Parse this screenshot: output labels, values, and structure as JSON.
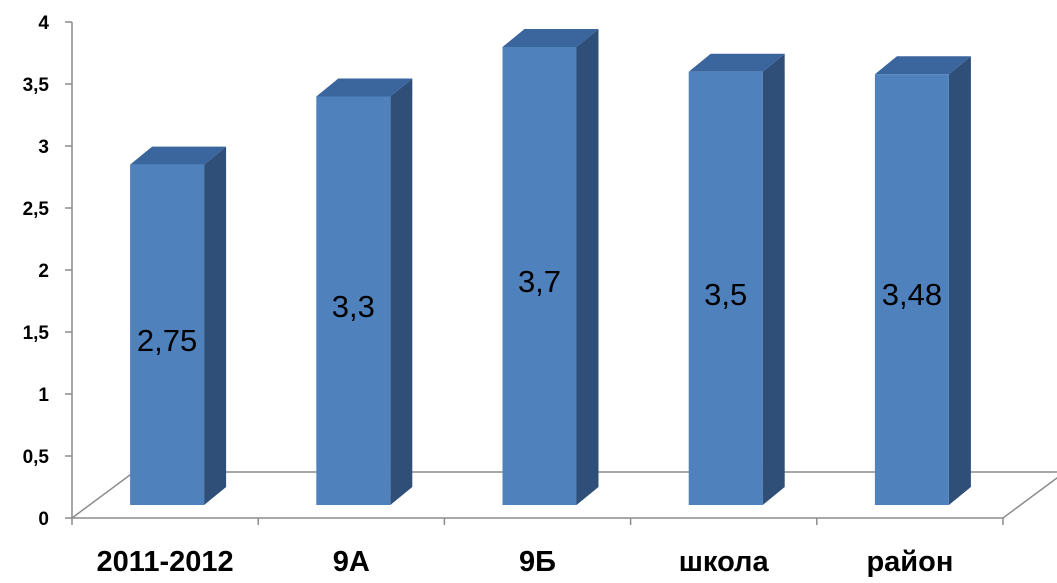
{
  "chart_data": {
    "type": "bar",
    "categories": [
      "2011-2012",
      "9А",
      "9Б",
      "школа",
      "район"
    ],
    "values": [
      2.75,
      3.3,
      3.7,
      3.5,
      3.48
    ],
    "data_labels": [
      "2,75",
      "3,3",
      "3,7",
      "3,5",
      "3,48"
    ],
    "ylim": [
      0,
      4
    ],
    "y_ticks": [
      "0",
      "0,5",
      "1",
      "1,5",
      "2",
      "2,5",
      "3",
      "3,5",
      "4"
    ],
    "title": "",
    "xlabel": "",
    "ylabel": "",
    "grid": false,
    "legend": "none",
    "style": "3d-column",
    "colors": {
      "front": "#4F81BD",
      "side": "#2F4F78",
      "top": "#3A659D",
      "axis": "#8C8C8C"
    }
  }
}
